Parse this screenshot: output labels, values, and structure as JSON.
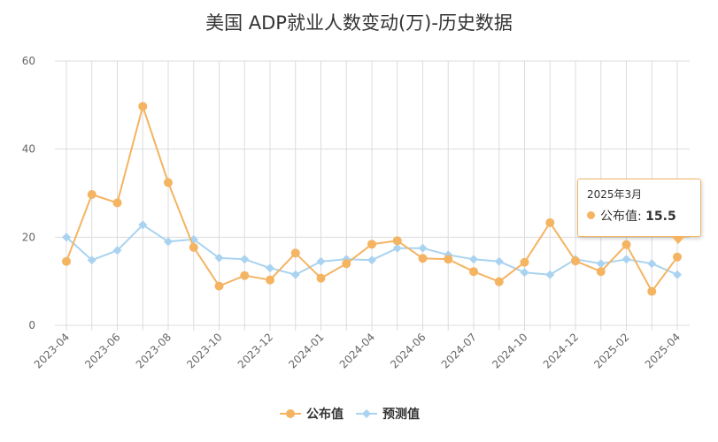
{
  "chart_data": {
    "type": "line",
    "title": "美国 ADP就业人数变动(万)-历史数据",
    "xlabel": "",
    "ylabel": "",
    "ylim": [
      0,
      60
    ],
    "yticks": [
      0,
      20,
      40,
      60
    ],
    "grid": true,
    "legend_position": "bottom-center",
    "x_tick_labels": [
      "2023-04",
      "2023-06",
      "2023-08",
      "2023-10",
      "2023-12",
      "2024-01",
      "2024-04",
      "2024-06",
      "2024-07",
      "2024-10",
      "2024-12",
      "2025-02",
      "2025-04"
    ],
    "x_tick_indices": [
      0,
      2,
      4,
      6,
      8,
      10,
      12,
      14,
      16,
      18,
      20,
      22,
      24
    ],
    "series": [
      {
        "name": "公布值",
        "color": "#f4b462",
        "marker": "circle",
        "values": [
          14.5,
          29.7,
          27.8,
          49.7,
          32.4,
          17.7,
          8.9,
          11.3,
          10.3,
          16.4,
          10.7,
          14.0,
          18.4,
          19.2,
          15.2,
          15.0,
          12.2,
          9.9,
          14.3,
          23.3,
          14.6,
          12.2,
          18.3,
          7.7,
          15.5
        ]
      },
      {
        "name": "预测值",
        "color": "#a9d3f0",
        "marker": "diamond",
        "values": [
          20.0,
          14.8,
          17.0,
          22.8,
          19.0,
          19.5,
          15.3,
          15.0,
          13.0,
          11.5,
          14.5,
          15.0,
          14.8,
          17.5,
          17.5,
          16.0,
          15.0,
          14.5,
          12.0,
          11.5,
          15.0,
          14.0,
          15.0,
          14.0,
          11.5
        ]
      }
    ],
    "tooltip": {
      "date": "2025年3月",
      "series_label": "公布值",
      "value": "15.5"
    }
  }
}
